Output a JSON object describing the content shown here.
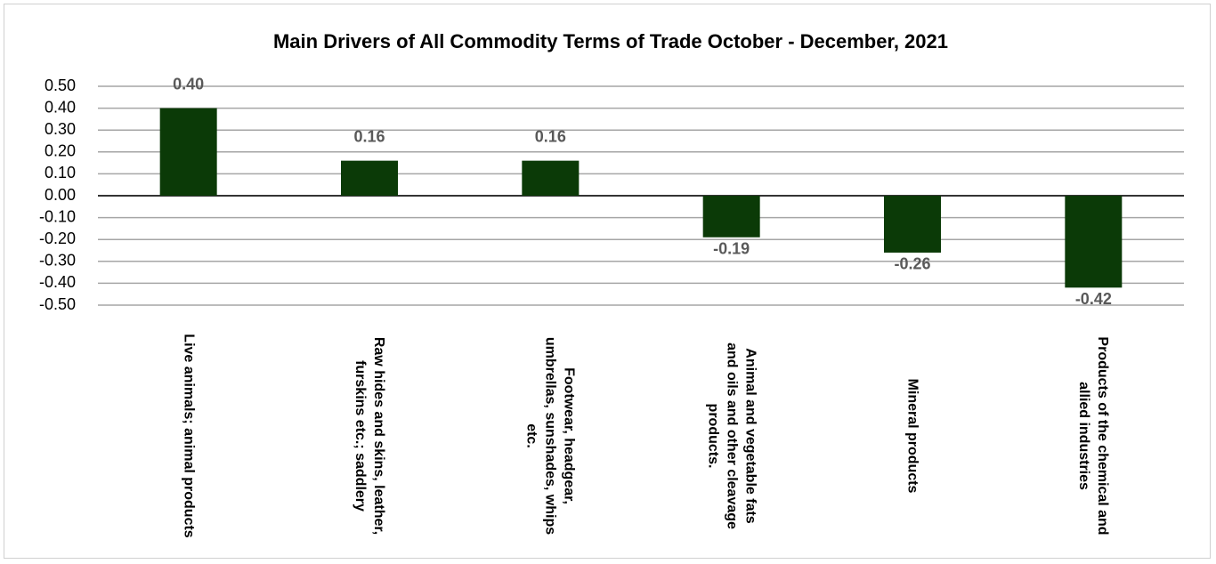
{
  "chart_data": {
    "type": "bar",
    "title": "Main Drivers of All  Commodity Terms of Trade October - December, 2021",
    "categories": [
      "Live animals; animal products",
      "Raw hides and skins, leather, furskins etc.; saddlery",
      "Footwear, headgear, umbrellas, sunshades, whips etc.",
      "Animal and vegetable fats and oils and other cleavage products.",
      "Mineral products",
      "Products of the chemical and allied industries"
    ],
    "values": [
      0.4,
      0.16,
      0.16,
      -0.19,
      -0.26,
      -0.42
    ],
    "value_labels": [
      "0.40",
      "0.16",
      "0.16",
      "-0.19",
      "-0.26",
      "-0.42"
    ],
    "color": "#0b3a07",
    "ylim": [
      -0.5,
      0.5
    ],
    "yticks": [
      {
        "value": -0.5,
        "label": "-0.50"
      },
      {
        "value": -0.4,
        "label": "-0.40"
      },
      {
        "value": -0.3,
        "label": "-0.30"
      },
      {
        "value": -0.2,
        "label": "-0.20"
      },
      {
        "value": -0.1,
        "label": "-0.10"
      },
      {
        "value": 0,
        "label": "0.00"
      },
      {
        "value": 0.1,
        "label": "0.10"
      },
      {
        "value": 0.2,
        "label": "0.20"
      },
      {
        "value": 0.3,
        "label": "0.30"
      },
      {
        "value": 0.4,
        "label": "0.40"
      },
      {
        "value": 0.5,
        "label": "0.50"
      }
    ],
    "grid": true
  }
}
